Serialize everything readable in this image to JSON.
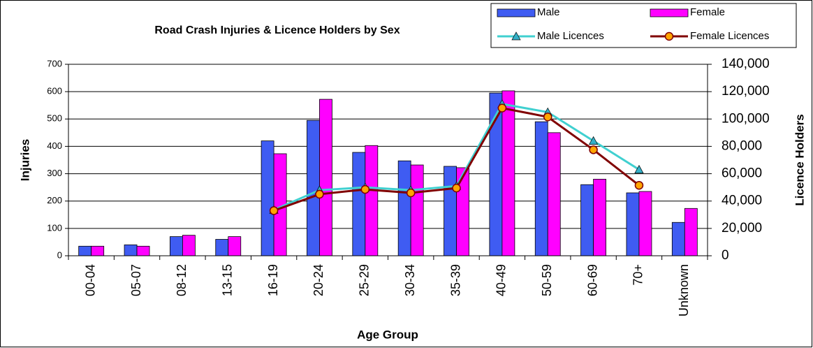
{
  "chart_data": {
    "type": "bar",
    "title": "Road Crash Injuries & Licence Holders by Sex",
    "x_label": "Age Group",
    "y_label": "Injuries",
    "y2_label": "Licence Holders",
    "categories": [
      "00-04",
      "05-07",
      "08-12",
      "13-15",
      "16-19",
      "20-24",
      "25-29",
      "30-34",
      "35-39",
      "40-49",
      "50-59",
      "60-69",
      "70+",
      "Unknown"
    ],
    "series": [
      {
        "name": "Male",
        "type": "bar",
        "color": "#3f5cf2",
        "values": [
          35,
          40,
          70,
          60,
          420,
          495,
          378,
          347,
          327,
          595,
          490,
          260,
          230,
          122
        ]
      },
      {
        "name": "Female",
        "type": "bar",
        "color": "#ff00ff",
        "values": [
          35,
          35,
          75,
          70,
          373,
          572,
          403,
          332,
          322,
          603,
          450,
          280,
          235,
          173
        ]
      },
      {
        "name": "Male Licences",
        "type": "line",
        "axis": "y2",
        "color": "#40d0d0",
        "marker": "triangle",
        "marker_color": "#33b0c8",
        "values": [
          null,
          null,
          null,
          null,
          33500,
          48000,
          50000,
          48000,
          51000,
          111000,
          105000,
          84000,
          63000,
          null
        ]
      },
      {
        "name": "Female Licences",
        "type": "line",
        "axis": "y2",
        "color": "#800000",
        "marker": "circle",
        "marker_color": "#ffa500",
        "values": [
          null,
          null,
          null,
          null,
          33000,
          45000,
          48500,
          46000,
          49500,
          108000,
          101500,
          77500,
          51500,
          null
        ]
      }
    ],
    "ylim": [
      0,
      700
    ],
    "yticks": [
      0,
      100,
      200,
      300,
      400,
      500,
      600,
      700
    ],
    "y2lim": [
      0,
      140000
    ],
    "y2ticks": [
      0,
      {
        "value": 20000,
        "label": "20,000"
      },
      {
        "value": 40000,
        "label": "40,000"
      },
      {
        "value": 60000,
        "label": "60,000"
      },
      {
        "value": 80000,
        "label": "80,000"
      },
      {
        "value": 100000,
        "label": "100,000"
      },
      {
        "value": 120000,
        "label": "120,000"
      },
      {
        "value": 140000,
        "label": "140,000"
      }
    ],
    "grid": true,
    "legend": "top-right"
  }
}
